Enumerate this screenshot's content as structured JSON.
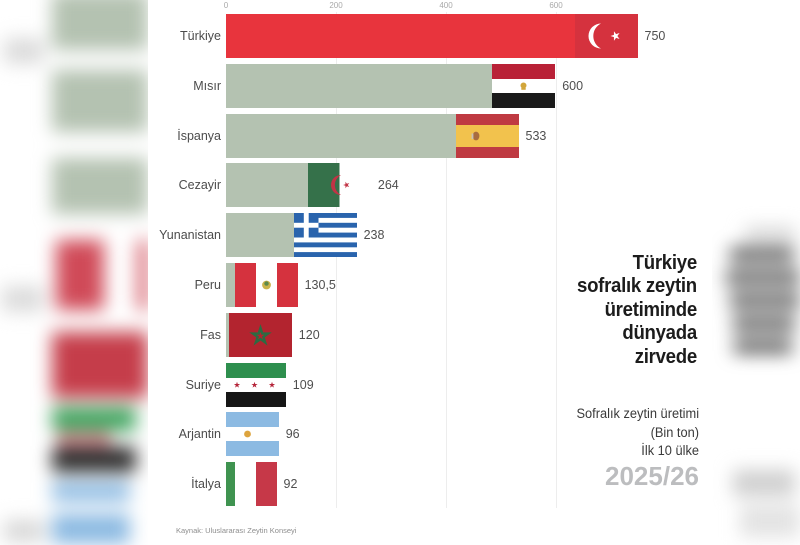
{
  "chart_data": {
    "type": "bar",
    "orientation": "horizontal",
    "title": "Türkiye sofralık zeytin üretiminde dünyada zirvede",
    "title_lines": [
      "Türkiye",
      "sofralık zeytin",
      "üretiminde",
      "dünyada",
      "zirvede"
    ],
    "subtitle_lines": [
      "Sofralık zeytin üretimi",
      "(Bin ton)",
      "İlk 10 ülke"
    ],
    "season": "2025/26",
    "source": "Kaynak: Uluslararası Zeytin Konseyi",
    "x_ticks": [
      "0",
      "200",
      "400",
      "600"
    ],
    "xlim": [
      0,
      790
    ],
    "unit": "Bin ton",
    "grid": true,
    "rows": [
      {
        "country": "Türkiye",
        "value": 750,
        "value_label": "750",
        "flag": "turkey-flag",
        "highlight": true
      },
      {
        "country": "Mısır",
        "value": 600,
        "value_label": "600",
        "flag": "egypt-flag",
        "highlight": false
      },
      {
        "country": "İspanya",
        "value": 533,
        "value_label": "533",
        "flag": "spain-flag",
        "highlight": false
      },
      {
        "country": "Cezayir",
        "value": 264,
        "value_label": "264",
        "flag": "algeria-flag",
        "highlight": false
      },
      {
        "country": "Yunanistan",
        "value": 238,
        "value_label": "238",
        "flag": "greece-flag",
        "highlight": false
      },
      {
        "country": "Peru",
        "value": 130.5,
        "value_label": "130,5",
        "flag": "peru-flag",
        "highlight": false
      },
      {
        "country": "Fas",
        "value": 120,
        "value_label": "120",
        "flag": "morocco-flag",
        "highlight": false
      },
      {
        "country": "Suriye",
        "value": 109,
        "value_label": "109",
        "flag": "syria-flag",
        "highlight": false
      },
      {
        "country": "Arjantin",
        "value": 96,
        "value_label": "96",
        "flag": "argentina-flag",
        "highlight": false
      },
      {
        "country": "İtalya",
        "value": 92,
        "value_label": "92",
        "flag": "italy-flag",
        "highlight": false
      }
    ],
    "colors": {
      "highlight_bar": "#e8343d",
      "default_bar": "#b4c2b1"
    }
  }
}
